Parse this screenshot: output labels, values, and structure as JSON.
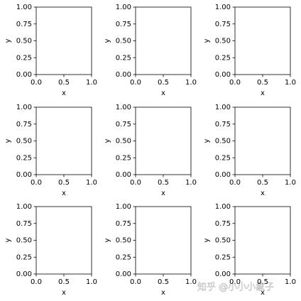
{
  "chart_data": [
    {
      "type": "line",
      "xlabel": "x",
      "ylabel": "y",
      "series": [],
      "xlim": [
        0,
        1
      ],
      "ylim": [
        0,
        1
      ],
      "xticks": [
        {
          "value": 0,
          "label": "0.0"
        },
        {
          "value": 0.5,
          "label": "0.5"
        },
        {
          "value": 1,
          "label": "1.0"
        }
      ],
      "yticks": [
        {
          "value": 0,
          "label": "0.00"
        },
        {
          "value": 0.25,
          "label": "0.25"
        },
        {
          "value": 0.5,
          "label": "0.50"
        },
        {
          "value": 0.75,
          "label": "0.75"
        },
        {
          "value": 1,
          "label": "1.00"
        }
      ]
    },
    {
      "type": "line",
      "xlabel": "x",
      "ylabel": "y",
      "series": [],
      "xlim": [
        0,
        1
      ],
      "ylim": [
        0,
        1
      ],
      "xticks": [
        {
          "value": 0,
          "label": "0.0"
        },
        {
          "value": 0.5,
          "label": "0.5"
        },
        {
          "value": 1,
          "label": "1.0"
        }
      ],
      "yticks": [
        {
          "value": 0,
          "label": "0.00"
        },
        {
          "value": 0.25,
          "label": "0.25"
        },
        {
          "value": 0.5,
          "label": "0.50"
        },
        {
          "value": 0.75,
          "label": "0.75"
        },
        {
          "value": 1,
          "label": "1.00"
        }
      ]
    },
    {
      "type": "line",
      "xlabel": "x",
      "ylabel": "y",
      "series": [],
      "xlim": [
        0,
        1
      ],
      "ylim": [
        0,
        1
      ],
      "xticks": [
        {
          "value": 0,
          "label": "0.0"
        },
        {
          "value": 0.5,
          "label": "0.5"
        },
        {
          "value": 1,
          "label": "1.0"
        }
      ],
      "yticks": [
        {
          "value": 0,
          "label": "0.00"
        },
        {
          "value": 0.25,
          "label": "0.25"
        },
        {
          "value": 0.5,
          "label": "0.50"
        },
        {
          "value": 0.75,
          "label": "0.75"
        },
        {
          "value": 1,
          "label": "1.00"
        }
      ]
    },
    {
      "type": "line",
      "xlabel": "x",
      "ylabel": "y",
      "series": [],
      "xlim": [
        0,
        1
      ],
      "ylim": [
        0,
        1
      ],
      "xticks": [
        {
          "value": 0,
          "label": "0.0"
        },
        {
          "value": 0.5,
          "label": "0.5"
        },
        {
          "value": 1,
          "label": "1.0"
        }
      ],
      "yticks": [
        {
          "value": 0,
          "label": "0.00"
        },
        {
          "value": 0.25,
          "label": "0.25"
        },
        {
          "value": 0.5,
          "label": "0.50"
        },
        {
          "value": 0.75,
          "label": "0.75"
        },
        {
          "value": 1,
          "label": "1.00"
        }
      ]
    },
    {
      "type": "line",
      "xlabel": "x",
      "ylabel": "y",
      "series": [],
      "xlim": [
        0,
        1
      ],
      "ylim": [
        0,
        1
      ],
      "xticks": [
        {
          "value": 0,
          "label": "0.0"
        },
        {
          "value": 0.5,
          "label": "0.5"
        },
        {
          "value": 1,
          "label": "1.0"
        }
      ],
      "yticks": [
        {
          "value": 0,
          "label": "0.00"
        },
        {
          "value": 0.25,
          "label": "0.25"
        },
        {
          "value": 0.5,
          "label": "0.50"
        },
        {
          "value": 0.75,
          "label": "0.75"
        },
        {
          "value": 1,
          "label": "1.00"
        }
      ]
    },
    {
      "type": "line",
      "xlabel": "x",
      "ylabel": "y",
      "series": [],
      "xlim": [
        0,
        1
      ],
      "ylim": [
        0,
        1
      ],
      "xticks": [
        {
          "value": 0,
          "label": "0.0"
        },
        {
          "value": 0.5,
          "label": "0.5"
        },
        {
          "value": 1,
          "label": "1.0"
        }
      ],
      "yticks": [
        {
          "value": 0,
          "label": "0.00"
        },
        {
          "value": 0.25,
          "label": "0.25"
        },
        {
          "value": 0.5,
          "label": "0.50"
        },
        {
          "value": 0.75,
          "label": "0.75"
        },
        {
          "value": 1,
          "label": "1.00"
        }
      ]
    },
    {
      "type": "line",
      "xlabel": "x",
      "ylabel": "y",
      "series": [],
      "xlim": [
        0,
        1
      ],
      "ylim": [
        0,
        1
      ],
      "xticks": [
        {
          "value": 0,
          "label": "0.0"
        },
        {
          "value": 0.5,
          "label": "0.5"
        },
        {
          "value": 1,
          "label": "1.0"
        }
      ],
      "yticks": [
        {
          "value": 0,
          "label": "0.00"
        },
        {
          "value": 0.25,
          "label": "0.25"
        },
        {
          "value": 0.5,
          "label": "0.50"
        },
        {
          "value": 0.75,
          "label": "0.75"
        },
        {
          "value": 1,
          "label": "1.00"
        }
      ]
    },
    {
      "type": "line",
      "xlabel": "x",
      "ylabel": "y",
      "series": [],
      "xlim": [
        0,
        1
      ],
      "ylim": [
        0,
        1
      ],
      "xticks": [
        {
          "value": 0,
          "label": "0.0"
        },
        {
          "value": 0.5,
          "label": "0.5"
        },
        {
          "value": 1,
          "label": "1.0"
        }
      ],
      "yticks": [
        {
          "value": 0,
          "label": "0.00"
        },
        {
          "value": 0.25,
          "label": "0.25"
        },
        {
          "value": 0.5,
          "label": "0.50"
        },
        {
          "value": 0.75,
          "label": "0.75"
        },
        {
          "value": 1,
          "label": "1.00"
        }
      ]
    },
    {
      "type": "line",
      "xlabel": "x",
      "ylabel": "y",
      "series": [],
      "xlim": [
        0,
        1
      ],
      "ylim": [
        0,
        1
      ],
      "xticks": [
        {
          "value": 0,
          "label": "0.0"
        },
        {
          "value": 0.5,
          "label": "0.5"
        },
        {
          "value": 1,
          "label": "1.0"
        }
      ],
      "yticks": [
        {
          "value": 0,
          "label": "0.00"
        },
        {
          "value": 0.25,
          "label": "0.25"
        },
        {
          "value": 0.5,
          "label": "0.50"
        },
        {
          "value": 0.75,
          "label": "0.75"
        },
        {
          "value": 1,
          "label": "1.00"
        }
      ]
    }
  ],
  "watermark": "知乎 @小小小象子"
}
